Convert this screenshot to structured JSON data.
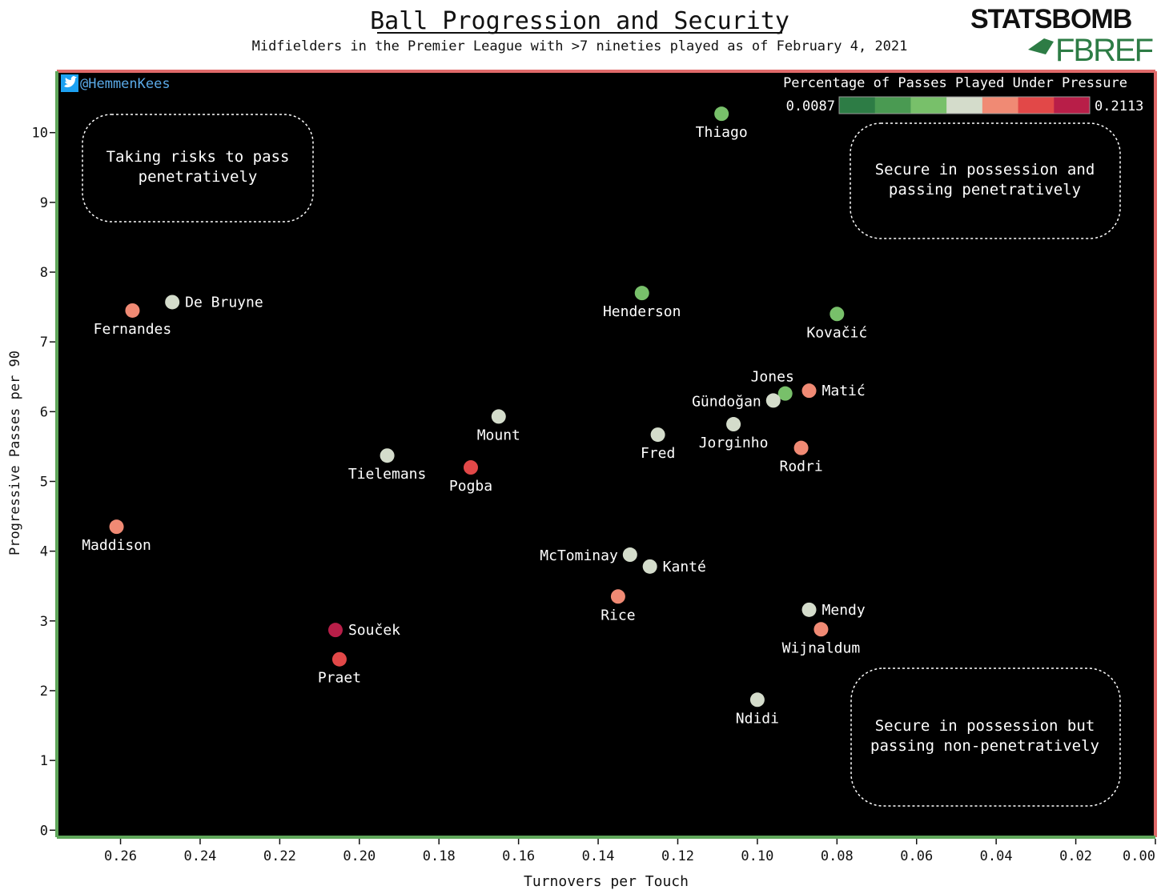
{
  "title": "Ball Progression and Security",
  "subtitle": "Midfielders in the Premier League with >7 nineties played as of February 4, 2021",
  "logos": {
    "statsbomb": "STATSBOMB",
    "fbref": "FBREF"
  },
  "twitter_handle": "@HemmenKees",
  "colors": {
    "background": "#000000",
    "frame_left_bottom": "#5fa65a",
    "frame_right_top": "#e06a6a",
    "quadrant_border": "#ffffff",
    "text": "#ffffff",
    "twitter_blue": "#1da1f2"
  },
  "colorbar": {
    "label": "Percentage of Passes Played Under Pressure",
    "min_label": "0.0087",
    "max_label": "0.2113",
    "min": 0.0087,
    "max": 0.2113,
    "colors": [
      "#2d7c45",
      "#4a9a52",
      "#78c06a",
      "#d4dccb",
      "#f08a74",
      "#e24848",
      "#b81e48"
    ]
  },
  "quadrant_notes": [
    {
      "name": "top-left",
      "line1": "Taking risks to pass",
      "line2": "penetratively"
    },
    {
      "name": "top-right",
      "line1": "Secure in possession and",
      "line2": "passing penetratively"
    },
    {
      "name": "bottom-right",
      "line1": "Secure in possession but",
      "line2": "passing non-penetratively"
    }
  ],
  "chart_data": {
    "type": "scatter",
    "xlabel": "Turnovers per Touch",
    "ylabel": "Progressive Passes per 90",
    "xlim": [
      0.276,
      0.0
    ],
    "x_inverted": true,
    "ylim": [
      -0.1,
      10.88
    ],
    "x_ticks": [
      "0.26",
      "0.24",
      "0.22",
      "0.20",
      "0.18",
      "0.16",
      "0.14",
      "0.12",
      "0.10",
      "0.08",
      "0.06",
      "0.04",
      "0.02",
      "0.00"
    ],
    "x_tick_values": [
      0.26,
      0.24,
      0.22,
      0.2,
      0.18,
      0.16,
      0.14,
      0.12,
      0.1,
      0.08,
      0.06,
      0.04,
      0.02,
      0.0
    ],
    "y_ticks": [
      "0",
      "1",
      "2",
      "3",
      "4",
      "5",
      "6",
      "7",
      "8",
      "9",
      "10"
    ],
    "y_tick_values": [
      0,
      1,
      2,
      3,
      4,
      5,
      6,
      7,
      8,
      9,
      10
    ],
    "grid": false,
    "color_by": "Percentage of Passes Played Under Pressure",
    "points": [
      {
        "name": "Thiago",
        "x": 0.109,
        "y": 10.27,
        "color": "#78c06a",
        "label_pos": "below"
      },
      {
        "name": "De Bruyne",
        "x": 0.247,
        "y": 7.57,
        "color": "#d4dccb",
        "label_pos": "right"
      },
      {
        "name": "Fernandes",
        "x": 0.257,
        "y": 7.45,
        "color": "#f08a74",
        "label_pos": "below"
      },
      {
        "name": "Henderson",
        "x": 0.129,
        "y": 7.7,
        "color": "#78c06a",
        "label_pos": "below"
      },
      {
        "name": "Kovačić",
        "x": 0.08,
        "y": 7.4,
        "color": "#78c06a",
        "label_pos": "below"
      },
      {
        "name": "Jones",
        "x": 0.093,
        "y": 6.26,
        "color": "#78c06a",
        "label_pos": "above"
      },
      {
        "name": "Matić",
        "x": 0.087,
        "y": 6.3,
        "color": "#f08a74",
        "label_pos": "right"
      },
      {
        "name": "Gündoğan",
        "x": 0.096,
        "y": 6.16,
        "color": "#d4dccb",
        "label_pos": "left"
      },
      {
        "name": "Jorginho",
        "x": 0.106,
        "y": 5.82,
        "color": "#d4dccb",
        "label_pos": "below"
      },
      {
        "name": "Mount",
        "x": 0.165,
        "y": 5.93,
        "color": "#d4dccb",
        "label_pos": "below"
      },
      {
        "name": "Fred",
        "x": 0.125,
        "y": 5.67,
        "color": "#d4dccb",
        "label_pos": "below"
      },
      {
        "name": "Rodri",
        "x": 0.089,
        "y": 5.48,
        "color": "#f08a74",
        "label_pos": "below"
      },
      {
        "name": "Tielemans",
        "x": 0.193,
        "y": 5.37,
        "color": "#d4dccb",
        "label_pos": "below"
      },
      {
        "name": "Pogba",
        "x": 0.172,
        "y": 5.2,
        "color": "#e24848",
        "label_pos": "below"
      },
      {
        "name": "Maddison",
        "x": 0.261,
        "y": 4.35,
        "color": "#f08a74",
        "label_pos": "below"
      },
      {
        "name": "McTominay",
        "x": 0.132,
        "y": 3.95,
        "color": "#d4dccb",
        "label_pos": "left"
      },
      {
        "name": "Kanté",
        "x": 0.127,
        "y": 3.78,
        "color": "#d4dccb",
        "label_pos": "right"
      },
      {
        "name": "Rice",
        "x": 0.135,
        "y": 3.35,
        "color": "#f08a74",
        "label_pos": "below"
      },
      {
        "name": "Mendy",
        "x": 0.087,
        "y": 3.16,
        "color": "#d4dccb",
        "label_pos": "right"
      },
      {
        "name": "Wijnaldum",
        "x": 0.084,
        "y": 2.88,
        "color": "#f08a74",
        "label_pos": "below"
      },
      {
        "name": "Souček",
        "x": 0.206,
        "y": 2.87,
        "color": "#b81e48",
        "label_pos": "right"
      },
      {
        "name": "Praet",
        "x": 0.205,
        "y": 2.45,
        "color": "#e24848",
        "label_pos": "below"
      },
      {
        "name": "Ndidi",
        "x": 0.1,
        "y": 1.87,
        "color": "#d4dccb",
        "label_pos": "below"
      }
    ]
  }
}
